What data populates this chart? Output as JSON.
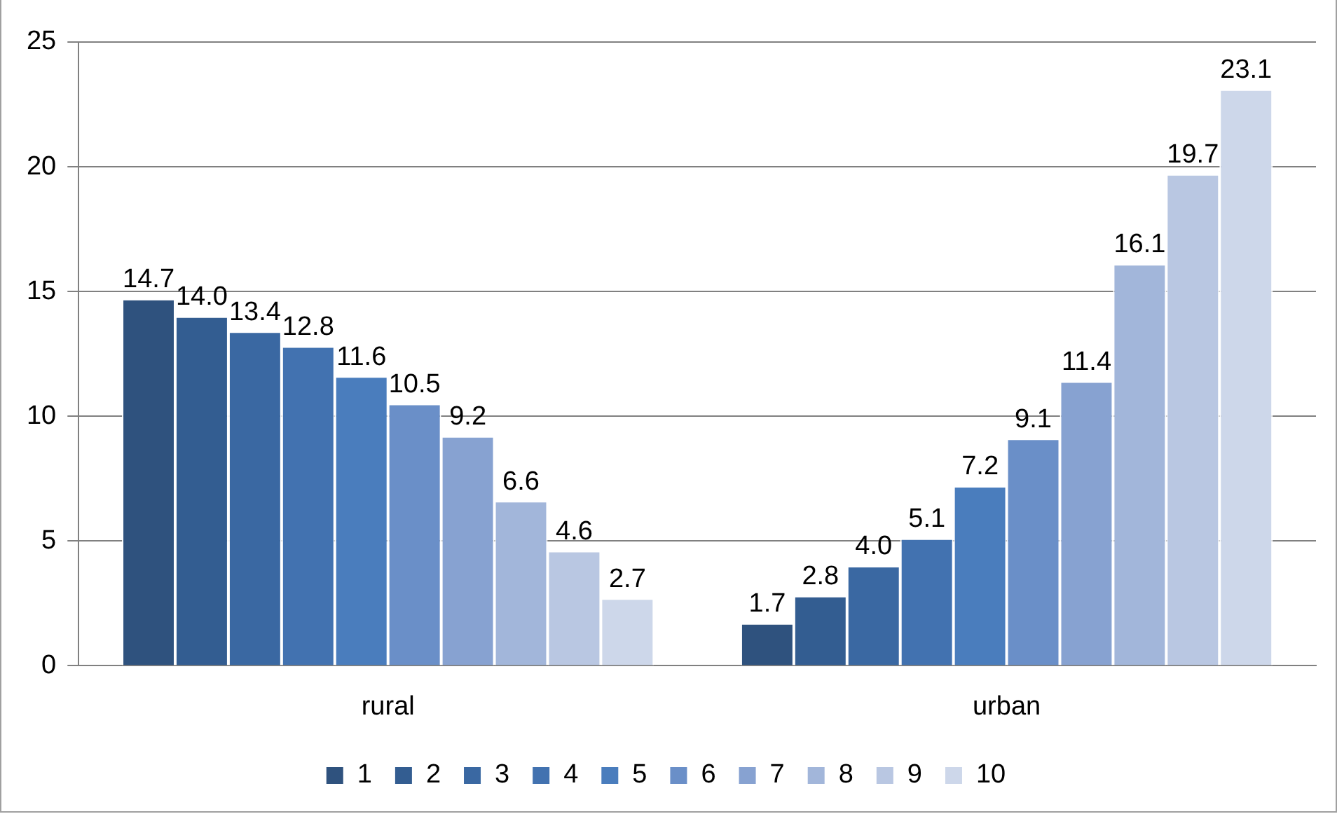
{
  "chart_data": {
    "type": "bar",
    "categories": [
      "rural",
      "urban"
    ],
    "series": [
      {
        "name": "1",
        "color": "#2f527e",
        "values": [
          14.7,
          1.7
        ],
        "value_labels": [
          "14.7",
          "1.7"
        ]
      },
      {
        "name": "2",
        "color": "#335d91",
        "values": [
          14.0,
          2.8
        ],
        "value_labels": [
          "14.0",
          "2.8"
        ]
      },
      {
        "name": "3",
        "color": "#3a68a2",
        "values": [
          13.4,
          4.0
        ],
        "value_labels": [
          "13.4",
          "4.0"
        ]
      },
      {
        "name": "4",
        "color": "#4272b0",
        "values": [
          12.8,
          5.1
        ],
        "value_labels": [
          "12.8",
          "5.1"
        ]
      },
      {
        "name": "5",
        "color": "#4a7dbd",
        "values": [
          11.6,
          7.2
        ],
        "value_labels": [
          "11.6",
          "7.2"
        ]
      },
      {
        "name": "6",
        "color": "#6a8fc8",
        "values": [
          10.5,
          9.1
        ],
        "value_labels": [
          "10.5",
          "9.1"
        ]
      },
      {
        "name": "7",
        "color": "#87a2d1",
        "values": [
          9.2,
          11.4
        ],
        "value_labels": [
          "9.2",
          "11.4"
        ]
      },
      {
        "name": "8",
        "color": "#a2b6da",
        "values": [
          6.6,
          16.1
        ],
        "value_labels": [
          "6.6",
          "16.1"
        ]
      },
      {
        "name": "9",
        "color": "#b9c7e2",
        "values": [
          4.6,
          19.7
        ],
        "value_labels": [
          "4.6",
          "19.7"
        ]
      },
      {
        "name": "10",
        "color": "#cdd7ea",
        "values": [
          2.7,
          23.1
        ],
        "value_labels": [
          "2.7",
          "23.1"
        ]
      }
    ],
    "ylim": [
      0,
      25
    ],
    "yticks": [
      0,
      5,
      10,
      15,
      20,
      25
    ],
    "grid": "y",
    "legend": "bottom"
  }
}
